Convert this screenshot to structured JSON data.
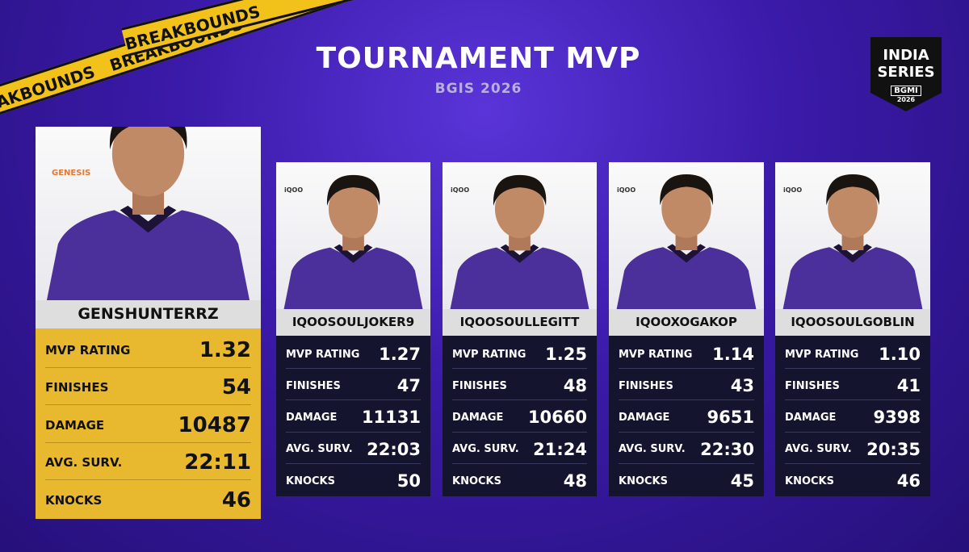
{
  "header": {
    "title": "TOURNAMENT MVP",
    "subtitle": "BGIS 2026",
    "tape": "BREAKBOUNDS"
  },
  "logo": {
    "line1": "INDIA",
    "line2": "SERIES",
    "badge": "BGMI",
    "year": "2026"
  },
  "players": [
    {
      "team": "GENESIS",
      "name": "GENSHUNTERRZ",
      "stats": [
        {
          "label": "MVP RATING",
          "value": "1.32"
        },
        {
          "label": "FINISHES",
          "value": "54"
        },
        {
          "label": "DAMAGE",
          "value": "10487"
        },
        {
          "label": "AVG. SURV.",
          "value": "22:11"
        },
        {
          "label": "KNOCKS",
          "value": "46"
        }
      ]
    },
    {
      "team": "iQOO",
      "name": "IQOOSOULJOKER9",
      "stats": [
        {
          "label": "MVP RATING",
          "value": "1.27"
        },
        {
          "label": "FINISHES",
          "value": "47"
        },
        {
          "label": "DAMAGE",
          "value": "11131"
        },
        {
          "label": "AVG. SURV.",
          "value": "22:03"
        },
        {
          "label": "KNOCKS",
          "value": "50"
        }
      ]
    },
    {
      "team": "iQOO",
      "name": "IQOOSOULLEGITT",
      "stats": [
        {
          "label": "MVP RATING",
          "value": "1.25"
        },
        {
          "label": "FINISHES",
          "value": "48"
        },
        {
          "label": "DAMAGE",
          "value": "10660"
        },
        {
          "label": "AVG. SURV.",
          "value": "21:24"
        },
        {
          "label": "KNOCKS",
          "value": "48"
        }
      ]
    },
    {
      "team": "iQOO",
      "name": "IQOOXOGAKOP",
      "stats": [
        {
          "label": "MVP RATING",
          "value": "1.14"
        },
        {
          "label": "FINISHES",
          "value": "43"
        },
        {
          "label": "DAMAGE",
          "value": "9651"
        },
        {
          "label": "AVG. SURV.",
          "value": "22:30"
        },
        {
          "label": "KNOCKS",
          "value": "45"
        }
      ]
    },
    {
      "team": "iQOO",
      "name": "IQOOSOULGOBLIN",
      "stats": [
        {
          "label": "MVP RATING",
          "value": "1.10"
        },
        {
          "label": "FINISHES",
          "value": "41"
        },
        {
          "label": "DAMAGE",
          "value": "9398"
        },
        {
          "label": "AVG. SURV.",
          "value": "20:35"
        },
        {
          "label": "KNOCKS",
          "value": "46"
        }
      ]
    }
  ]
}
